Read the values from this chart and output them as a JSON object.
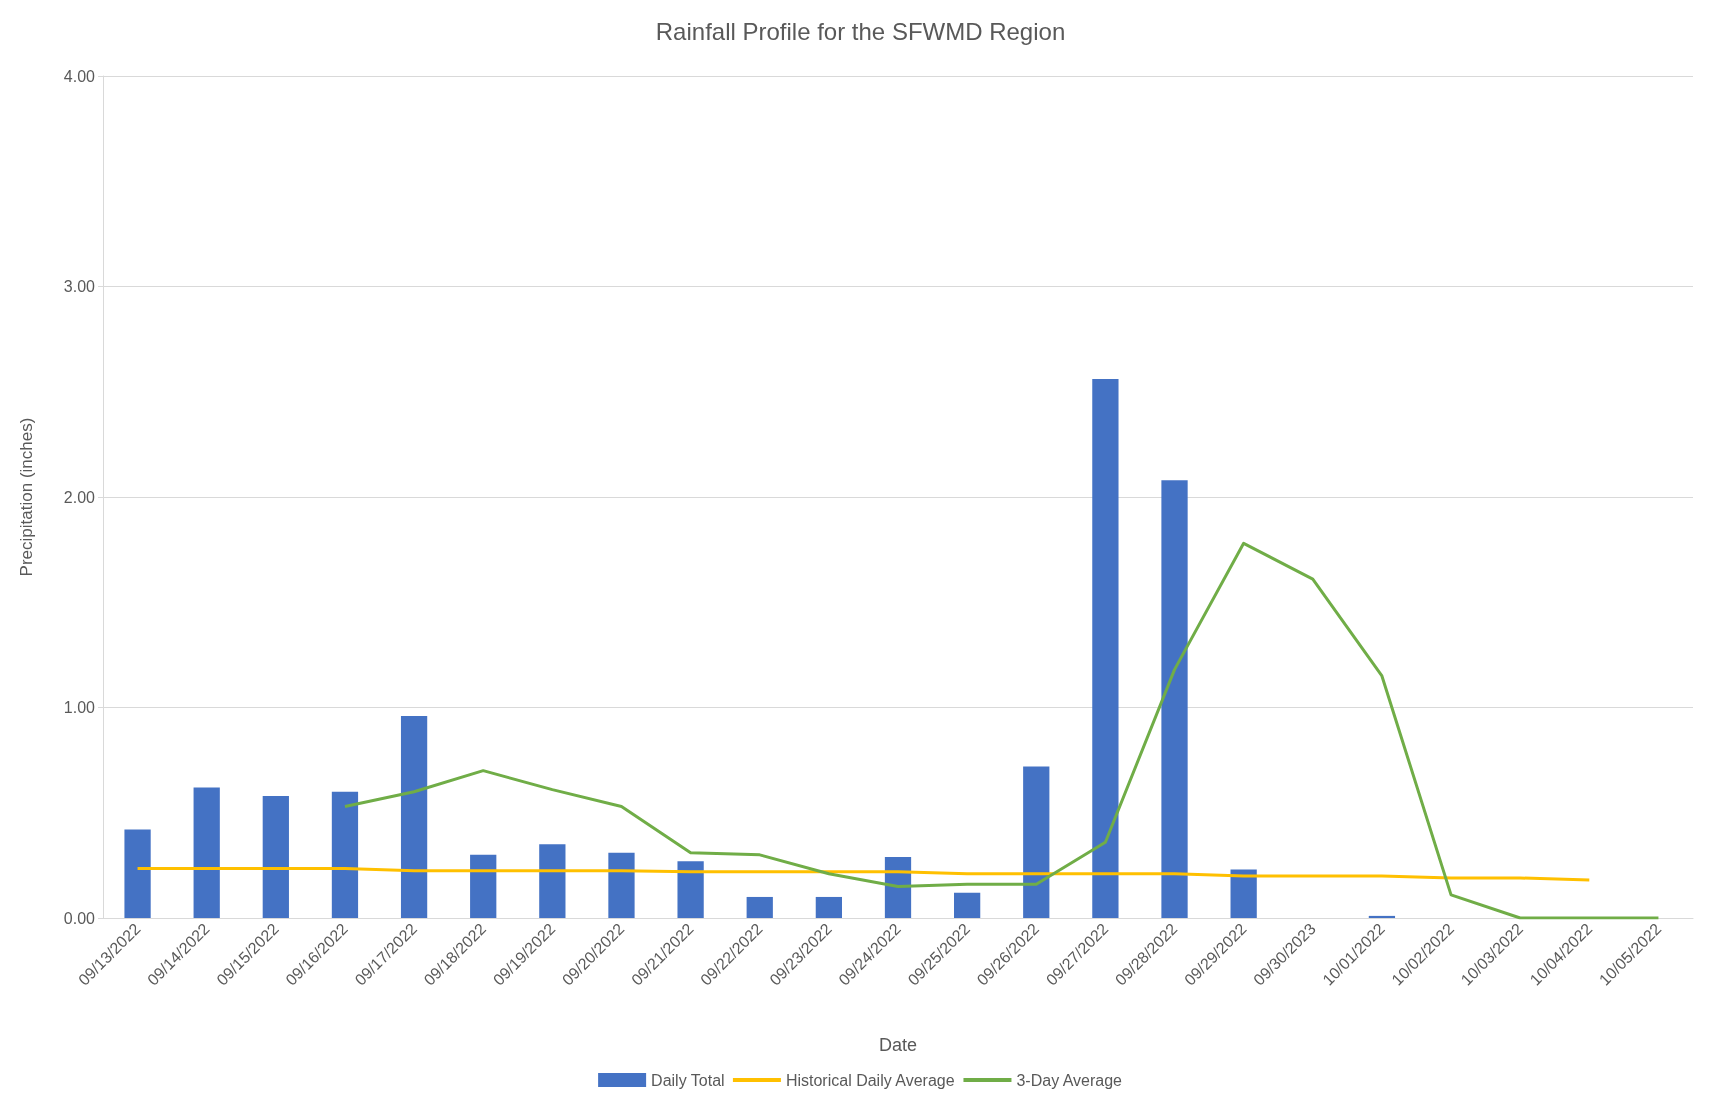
{
  "chart_data": {
    "type": "bar",
    "title": "Rainfall Profile for the SFWMD Region",
    "xlabel": "Date",
    "ylabel": "Precipitation (inches)",
    "categories": [
      "09/13/2022",
      "09/14/2022",
      "09/15/2022",
      "09/16/2022",
      "09/17/2022",
      "09/18/2022",
      "09/19/2022",
      "09/20/2022",
      "09/21/2022",
      "09/22/2022",
      "09/23/2022",
      "09/24/2022",
      "09/25/2022",
      "09/26/2022",
      "09/27/2022",
      "09/28/2022",
      "09/29/2022",
      "09/30/2023",
      "10/01/2022",
      "10/02/2022",
      "10/03/2022",
      "10/04/2022",
      "10/05/2022"
    ],
    "series": [
      {
        "name": "Daily Total",
        "color": "#4472c4",
        "values": [
          0.42,
          0.62,
          0.58,
          0.6,
          0.96,
          0.3,
          0.35,
          0.31,
          0.27,
          0.1,
          0.1,
          0.29,
          0.12,
          0.72,
          2.56,
          2.08,
          0.23,
          0,
          0.01,
          0,
          0,
          0,
          0
        ]
      },
      {
        "name": "Historical Daily Average",
        "type": "line",
        "color": "#ffc000",
        "values": [
          0.235,
          0.235,
          0.235,
          0.235,
          0.225,
          0.225,
          0.225,
          0.225,
          0.22,
          0.22,
          0.22,
          0.22,
          0.21,
          0.21,
          0.21,
          0.21,
          0.2,
          0.2,
          0.2,
          0.19,
          0.19,
          0.18,
          null
        ]
      },
      {
        "name": "3-Day Average",
        "type": "line",
        "color": "#70ad47",
        "values": [
          null,
          null,
          null,
          0.53,
          0.6,
          0.7,
          0.61,
          0.53,
          0.31,
          0.3,
          0.21,
          0.15,
          0.16,
          0.16,
          0.36,
          1.18,
          1.78,
          1.61,
          1.15,
          0.11,
          0,
          0,
          0
        ]
      }
    ],
    "ylim": [
      0,
      4
    ],
    "yticks": [
      {
        "value": 0,
        "label": "0.00"
      },
      {
        "value": 1,
        "label": "1.00"
      },
      {
        "value": 2,
        "label": "2.00"
      },
      {
        "value": 3,
        "label": "3.00"
      },
      {
        "value": 4,
        "label": "4.00"
      }
    ],
    "grid": "y",
    "legend": "bottom",
    "marker": "none"
  }
}
